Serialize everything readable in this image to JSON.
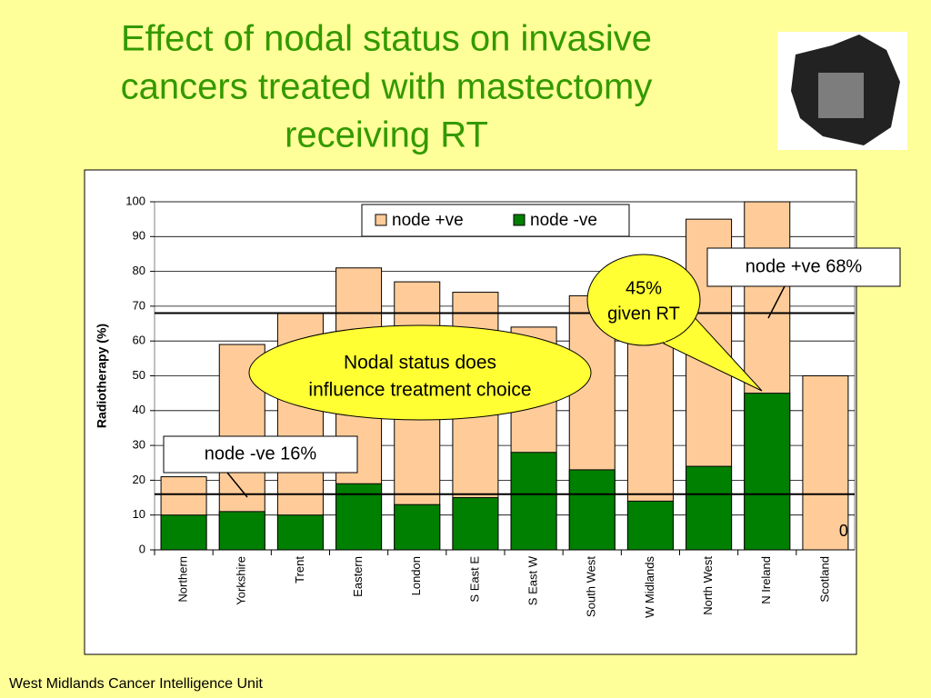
{
  "chart_data": {
    "type": "bar",
    "title_lines": [
      "Effect of nodal status on invasive",
      "cancers treated with mastectomy",
      "receiving RT"
    ],
    "ylabel": "Radiotherapy (%)",
    "categories": [
      "Northern",
      "Yorkshire",
      "Trent",
      "Eastern",
      "London",
      "S East E",
      "S East W",
      "South West",
      "W Midlands",
      "North West",
      "N Ireland",
      "Scotland"
    ],
    "series": [
      {
        "name": "node +ve",
        "color": "#ffcc99",
        "values": [
          21,
          59,
          68,
          81,
          77,
          74,
          64,
          73,
          80,
          95,
          100,
          50
        ]
      },
      {
        "name": "node -ve",
        "color": "#008000",
        "values": [
          10,
          11,
          10,
          19,
          13,
          15,
          28,
          23,
          14,
          24,
          45,
          0
        ],
        "value_labels": [
          null,
          null,
          null,
          null,
          null,
          null,
          null,
          null,
          null,
          null,
          null,
          "0"
        ]
      }
    ],
    "ylim": [
      0,
      100
    ],
    "yticks": [
      0,
      10,
      20,
      30,
      40,
      50,
      60,
      70,
      80,
      90,
      100
    ],
    "grid": true,
    "reference_lines": [
      {
        "value": 68,
        "label": "node +ve 68%"
      },
      {
        "value": 16,
        "label": "node -ve 16%"
      }
    ],
    "callouts": [
      {
        "lines": [
          "Nodal status does",
          "influence treatment choice"
        ]
      },
      {
        "lines": [
          "45%",
          "given RT"
        ]
      }
    ]
  },
  "footer": "West Midlands Cancer Intelligence Unit"
}
